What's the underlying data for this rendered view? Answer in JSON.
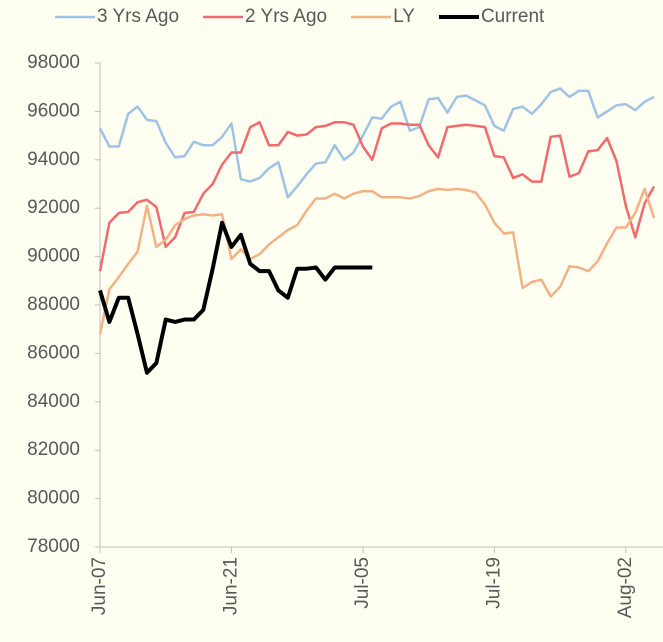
{
  "chart_data": {
    "type": "line",
    "categories": [
      "Jun-07",
      null,
      null,
      null,
      null,
      null,
      null,
      null,
      null,
      null,
      null,
      null,
      null,
      null,
      "Jun-21",
      null,
      null,
      null,
      null,
      null,
      null,
      null,
      null,
      null,
      null,
      null,
      null,
      null,
      "Jul-05",
      null,
      null,
      null,
      null,
      null,
      null,
      null,
      null,
      null,
      null,
      null,
      null,
      null,
      "Jul-19",
      null,
      null,
      null,
      null,
      null,
      null,
      null,
      null,
      null,
      null,
      null,
      null,
      null,
      "Aug-02",
      null,
      null,
      null
    ],
    "series": [
      {
        "name": "3 Yrs Ago",
        "color": "#9dc3e6",
        "values": [
          95300,
          94550,
          94550,
          95900,
          96200,
          95650,
          95600,
          94700,
          94100,
          94150,
          94750,
          94600,
          94600,
          94950,
          95500,
          93200,
          93100,
          93250,
          93650,
          93900,
          92450,
          92900,
          93400,
          93850,
          93900,
          94600,
          94000,
          94300,
          95000,
          95750,
          95700,
          96200,
          96400,
          95200,
          95350,
          96500,
          96550,
          95950,
          96600,
          96650,
          96450,
          96250,
          95400,
          95200,
          96100,
          96200,
          95900,
          96300,
          96800,
          96950,
          96600,
          96850,
          96850,
          95750,
          96000,
          96250,
          96300,
          96050,
          96400,
          96600
        ]
      },
      {
        "name": "2 Yrs Ago",
        "color": "#f4696b",
        "values": [
          89400,
          91400,
          91800,
          91850,
          92250,
          92350,
          92050,
          90400,
          90800,
          91800,
          91850,
          92600,
          93000,
          93800,
          94300,
          94300,
          95350,
          95550,
          94600,
          94600,
          95150,
          95000,
          95050,
          95350,
          95400,
          95550,
          95550,
          95450,
          94550,
          94000,
          95300,
          95500,
          95500,
          95450,
          95450,
          94600,
          94100,
          95350,
          95400,
          95450,
          95400,
          95350,
          94150,
          94100,
          93250,
          93400,
          93100,
          93100,
          94950,
          95000,
          93300,
          93450,
          94350,
          94400,
          94900,
          93950,
          92100,
          90800,
          92200,
          92900
        ]
      },
      {
        "name": "LY",
        "color": "#f4b183",
        "values": [
          86800,
          88650,
          89150,
          89700,
          90200,
          92100,
          90400,
          90700,
          91300,
          91550,
          91700,
          91750,
          91700,
          91750,
          89900,
          90300,
          89900,
          90100,
          90500,
          90800,
          91100,
          91300,
          91900,
          92400,
          92400,
          92600,
          92400,
          92600,
          92700,
          92700,
          92450,
          92450,
          92450,
          92400,
          92500,
          92700,
          92800,
          92750,
          92800,
          92750,
          92650,
          92150,
          91400,
          90950,
          91000,
          88700,
          88950,
          89050,
          88350,
          88750,
          89600,
          89550,
          89400,
          89800,
          90550,
          91200,
          91200,
          91800,
          92800,
          91600
        ]
      },
      {
        "name": "Current",
        "color": "#000000",
        "values": [
          88600,
          87300,
          88300,
          88300,
          86800,
          85200,
          85600,
          87400,
          87300,
          87400,
          87400,
          87800,
          89500,
          91400,
          90400,
          90900,
          89700,
          89400,
          89400,
          88600,
          88300,
          89500,
          89500,
          89550,
          89050,
          89550,
          89550,
          89550,
          89550,
          89550,
          null,
          null,
          null,
          null,
          null,
          null,
          null,
          null,
          null,
          null,
          null,
          null,
          null,
          null,
          null,
          null,
          null,
          null,
          null,
          null,
          null,
          null,
          null,
          null,
          null,
          null,
          null,
          null,
          null,
          null
        ]
      }
    ],
    "ylim": [
      78000,
      98000
    ],
    "yticks": [
      78000,
      80000,
      82000,
      84000,
      86000,
      88000,
      90000,
      92000,
      94000,
      96000,
      98000
    ]
  }
}
